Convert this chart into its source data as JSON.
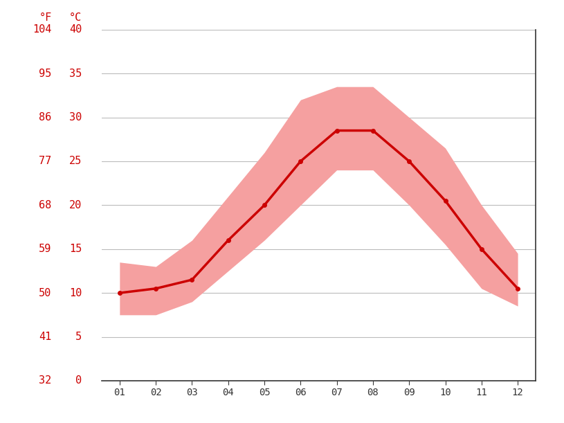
{
  "months": [
    1,
    2,
    3,
    4,
    5,
    6,
    7,
    8,
    9,
    10,
    11,
    12
  ],
  "month_labels": [
    "01",
    "02",
    "03",
    "04",
    "05",
    "06",
    "07",
    "08",
    "09",
    "10",
    "11",
    "12"
  ],
  "mean_celsius": [
    10.0,
    10.5,
    11.5,
    16.0,
    20.0,
    25.0,
    28.5,
    28.5,
    25.0,
    20.5,
    15.0,
    10.5
  ],
  "max_celsius": [
    13.5,
    13.0,
    16.0,
    21.0,
    26.0,
    32.0,
    33.5,
    33.5,
    30.0,
    26.5,
    20.0,
    14.5
  ],
  "min_celsius": [
    7.5,
    7.5,
    9.0,
    12.5,
    16.0,
    20.0,
    24.0,
    24.0,
    20.0,
    15.5,
    10.5,
    8.5
  ],
  "y_ticks_celsius": [
    0,
    5,
    10,
    15,
    20,
    25,
    30,
    35,
    40
  ],
  "y_ticks_fahrenheit": [
    32,
    41,
    50,
    59,
    68,
    77,
    86,
    95,
    104
  ],
  "ylim_celsius": [
    0,
    40
  ],
  "line_color": "#cc0000",
  "fill_color": "#f5a0a0",
  "grid_color": "#bbbbbb",
  "text_color": "#cc0000",
  "background_color": "#ffffff",
  "tick_color": "#333333",
  "border_color": "#333333"
}
